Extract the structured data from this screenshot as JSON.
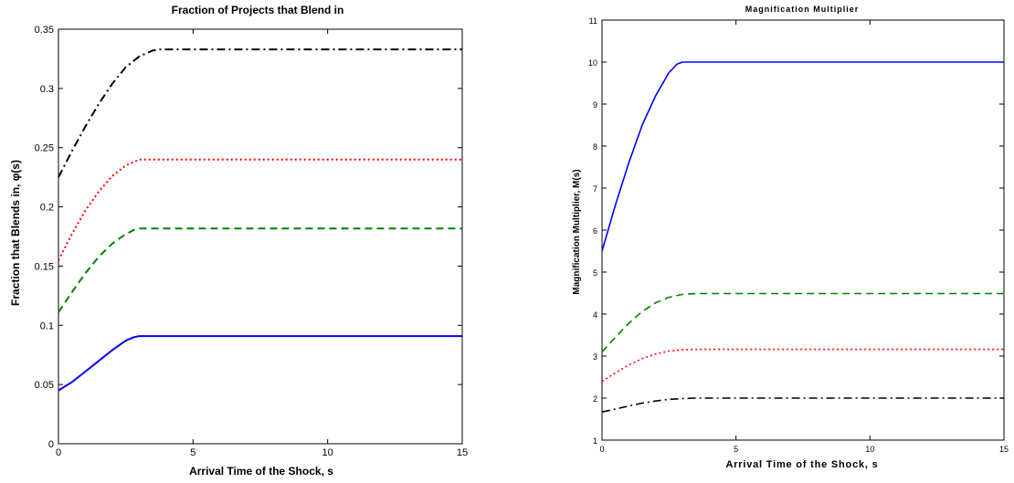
{
  "chart_data": [
    {
      "type": "line",
      "title": "Fraction of Projects that Blend in",
      "xlabel": "Arrival Time of the Shock, s",
      "ylabel": "Fraction that Blends in, φ(s)",
      "xlim": [
        0,
        15
      ],
      "ylim": [
        0,
        0.35
      ],
      "xticks": [
        "0",
        "5",
        "10",
        "15"
      ],
      "yticks": [
        "0",
        "0.05",
        "0.1",
        "0.15",
        "0.2",
        "0.25",
        "0.3",
        "0.35"
      ],
      "grid": false,
      "legend": "none",
      "series": [
        {
          "color": "#0000ff",
          "style": "solid",
          "x": [
            0,
            0.5,
            1,
            1.5,
            2,
            2.5,
            2.8,
            3,
            15
          ],
          "y": [
            0.045,
            0.052,
            0.061,
            0.07,
            0.079,
            0.087,
            0.09,
            0.0909,
            0.0909
          ]
        },
        {
          "color": "#008000",
          "style": "dashed",
          "x": [
            0,
            0.5,
            1,
            1.5,
            2,
            2.5,
            2.8,
            3,
            15
          ],
          "y": [
            0.111,
            0.128,
            0.144,
            0.158,
            0.169,
            0.177,
            0.1805,
            0.1818,
            0.1818
          ]
        },
        {
          "color": "#ff0000",
          "style": "dotted",
          "x": [
            0,
            0.5,
            1,
            1.5,
            2,
            2.5,
            2.8,
            3,
            15
          ],
          "y": [
            0.155,
            0.177,
            0.197,
            0.213,
            0.226,
            0.235,
            0.238,
            0.24,
            0.24
          ]
        },
        {
          "color": "#000000",
          "style": "dashdot",
          "x": [
            0,
            0.5,
            1,
            1.5,
            2,
            2.5,
            3,
            3.5,
            3.75,
            15
          ],
          "y": [
            0.225,
            0.247,
            0.268,
            0.287,
            0.304,
            0.318,
            0.327,
            0.332,
            0.333,
            0.333
          ]
        }
      ]
    },
    {
      "type": "line",
      "title": "Magnification Multiplier",
      "xlabel": "Arrival Time of the Shock, s",
      "ylabel": "Magnification Multiplier, M(s)",
      "xlim": [
        0,
        15
      ],
      "ylim": [
        1,
        11
      ],
      "xticks": [
        "0",
        "5",
        "10",
        "15"
      ],
      "yticks": [
        "1",
        "2",
        "3",
        "4",
        "5",
        "6",
        "7",
        "8",
        "9",
        "10",
        "11"
      ],
      "grid": false,
      "legend": "none",
      "series": [
        {
          "color": "#0000ff",
          "style": "solid",
          "x": [
            0,
            0.5,
            1,
            1.5,
            2,
            2.5,
            2.8,
            3,
            15
          ],
          "y": [
            5.5,
            6.6,
            7.6,
            8.5,
            9.2,
            9.75,
            9.95,
            10.0,
            10.0
          ]
        },
        {
          "color": "#008000",
          "style": "dashed",
          "x": [
            0,
            0.5,
            1,
            1.5,
            2,
            2.5,
            3,
            3.5,
            15
          ],
          "y": [
            3.1,
            3.45,
            3.78,
            4.06,
            4.27,
            4.4,
            4.47,
            4.49,
            4.49
          ]
        },
        {
          "color": "#ff0000",
          "style": "dotted",
          "x": [
            0,
            0.5,
            1,
            1.5,
            2,
            2.5,
            3,
            3.5,
            15
          ],
          "y": [
            2.4,
            2.6,
            2.79,
            2.94,
            3.05,
            3.12,
            3.15,
            3.16,
            3.16
          ]
        },
        {
          "color": "#000000",
          "style": "dashdot",
          "x": [
            0,
            0.5,
            1,
            1.5,
            2,
            2.5,
            3,
            3.5,
            15
          ],
          "y": [
            1.67,
            1.74,
            1.81,
            1.88,
            1.93,
            1.97,
            1.99,
            2.0,
            2.0
          ]
        }
      ]
    }
  ]
}
